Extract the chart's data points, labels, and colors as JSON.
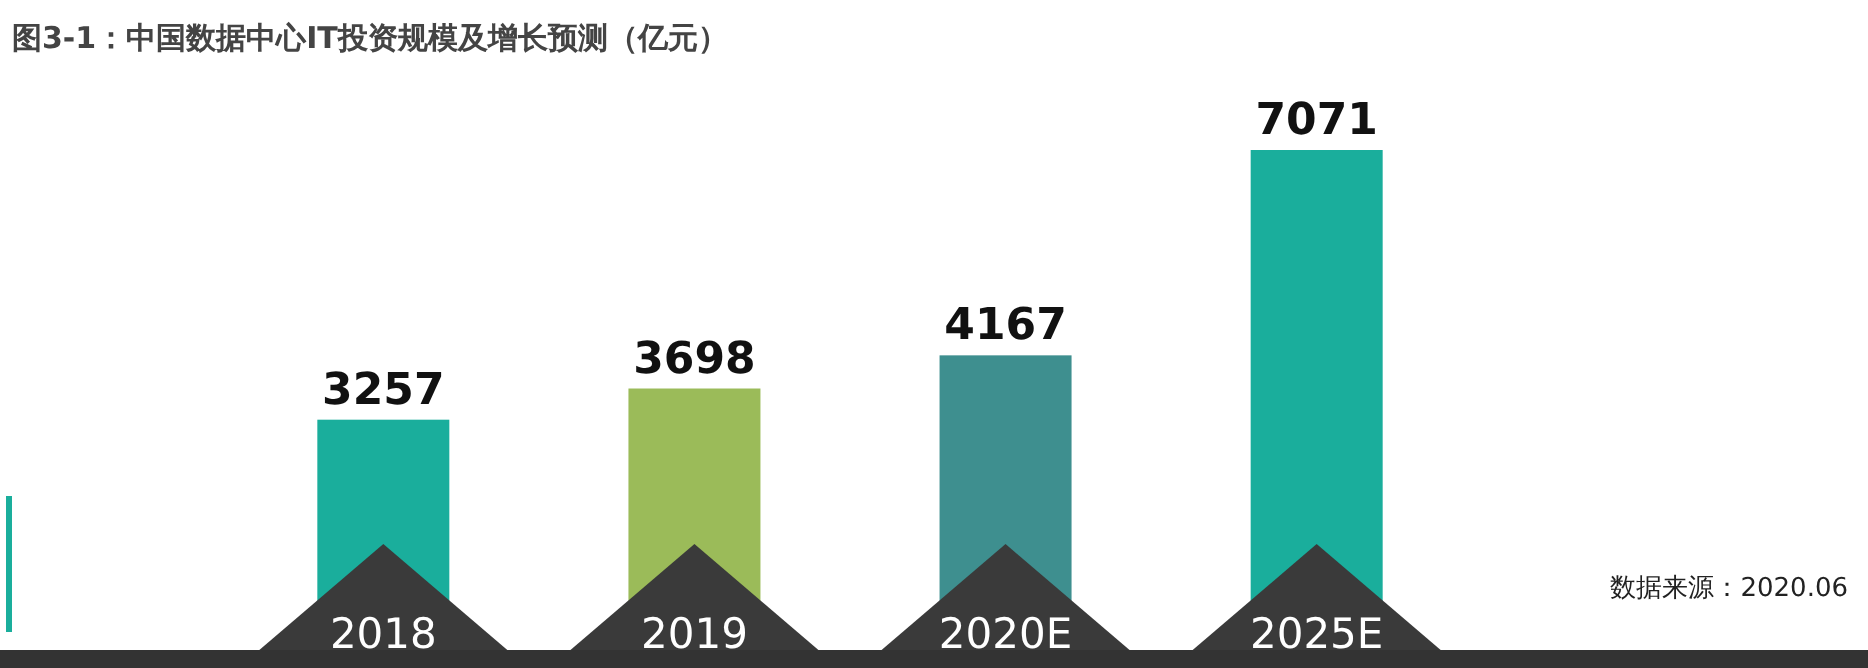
{
  "chart_data": {
    "type": "bar",
    "title": "图3-1：中国数据中心IT投资规模及增长预测（亿元）",
    "categories": [
      "2018",
      "2019",
      "2020E",
      "2025E"
    ],
    "values": [
      3257,
      3698,
      4167,
      7071
    ],
    "colors": [
      "#1aae9c",
      "#9bbb59",
      "#3e8f8f",
      "#1aae9c"
    ],
    "data_labels": true,
    "annotations": [
      "数据来源：2020.06"
    ]
  }
}
